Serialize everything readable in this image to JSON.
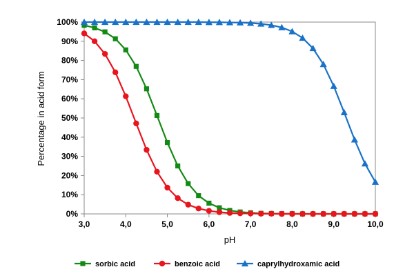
{
  "chart_data": {
    "type": "line",
    "xlabel": "pH",
    "ylabel": "Percentage in acid form",
    "xlim": [
      3.0,
      10.0
    ],
    "ylim": [
      0,
      100
    ],
    "x_ticks": [
      "3,0",
      "4,0",
      "5,0",
      "6,0",
      "7,0",
      "8,0",
      "9,0",
      "10,0"
    ],
    "y_ticks": [
      "0%",
      "10%",
      "20%",
      "30%",
      "40%",
      "50%",
      "60%",
      "70%",
      "80%",
      "90%",
      "100%"
    ],
    "grid": false,
    "legend_position": "bottom",
    "x": [
      3.0,
      3.25,
      3.5,
      3.75,
      4.0,
      4.25,
      4.5,
      4.75,
      5.0,
      5.25,
      5.5,
      5.75,
      6.0,
      6.25,
      6.5,
      6.75,
      7.0,
      7.25,
      7.5,
      7.75,
      8.0,
      8.25,
      8.5,
      8.75,
      9.0,
      9.25,
      9.5,
      9.75,
      10.0
    ],
    "series": [
      {
        "name": "sorbic acid",
        "color": "#138a13",
        "marker": "square",
        "values": [
          98.3,
          97.0,
          94.9,
          91.3,
          85.5,
          76.9,
          65.2,
          51.3,
          37.2,
          25.0,
          15.8,
          9.5,
          5.6,
          3.2,
          1.8,
          1.0,
          0.6,
          0.3,
          0.2,
          0.1,
          0.1,
          0.0,
          0.0,
          0.0,
          0.0,
          0.0,
          0.0,
          0.0,
          0.0
        ]
      },
      {
        "name": "benzoic acid",
        "color": "#e8141e",
        "marker": "circle",
        "values": [
          94.1,
          90.0,
          83.4,
          73.8,
          61.3,
          47.2,
          33.4,
          22.0,
          13.7,
          8.2,
          4.8,
          2.8,
          1.6,
          0.9,
          0.5,
          0.3,
          0.2,
          0.1,
          0.1,
          0.0,
          0.0,
          0.0,
          0.0,
          0.0,
          0.0,
          0.0,
          0.0,
          0.0,
          0.0
        ]
      },
      {
        "name": "caprylhydroxamic acid",
        "color": "#1a72c8",
        "marker": "triangle",
        "values": [
          100.0,
          100.0,
          100.0,
          100.0,
          100.0,
          100.0,
          100.0,
          100.0,
          100.0,
          100.0,
          100.0,
          100.0,
          99.9,
          99.9,
          99.8,
          99.7,
          99.5,
          99.1,
          98.4,
          97.2,
          95.1,
          91.7,
          86.3,
          78.0,
          66.6,
          52.9,
          38.7,
          26.2,
          16.6
        ]
      }
    ]
  }
}
